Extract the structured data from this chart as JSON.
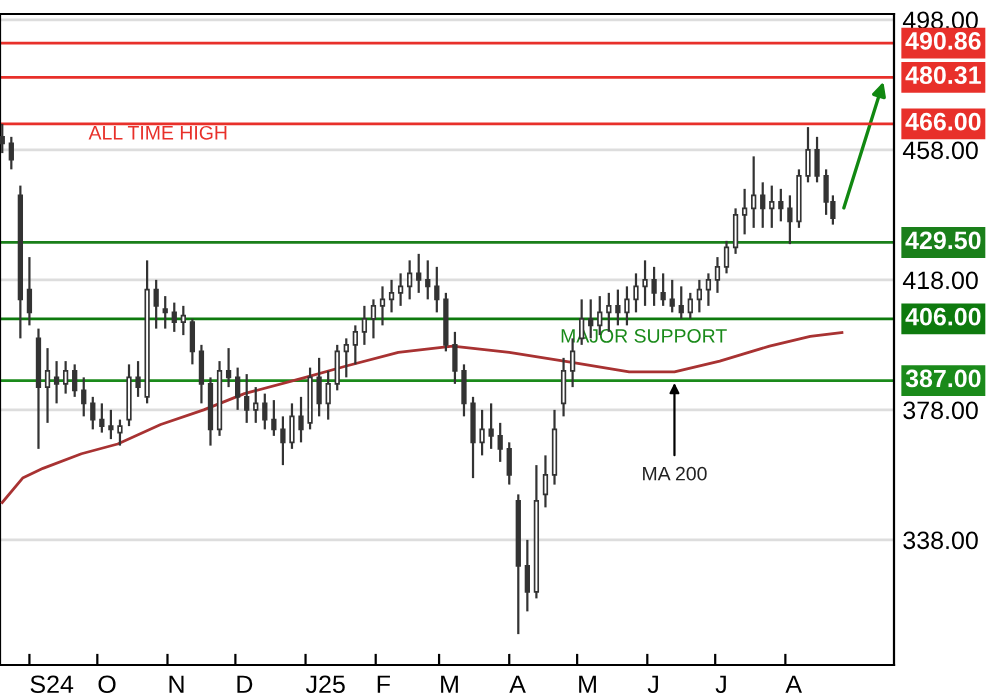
{
  "chart_data": {
    "type": "candlestick",
    "x": [
      "2024-08-20",
      "2024-08-24",
      "2024-08-28",
      "2024-09-01",
      "2024-09-05",
      "2024-09-09",
      "2024-09-13",
      "2024-09-17",
      "2024-09-21",
      "2024-09-25",
      "2024-09-29",
      "2024-10-03",
      "2024-10-07",
      "2024-10-11",
      "2024-10-15",
      "2024-10-19",
      "2024-10-23",
      "2024-10-27",
      "2024-10-31",
      "2024-11-04",
      "2024-11-08",
      "2024-11-12",
      "2024-11-16",
      "2024-11-20",
      "2024-11-24",
      "2024-11-28",
      "2024-12-02",
      "2024-12-06",
      "2024-12-10",
      "2024-12-14",
      "2024-12-18",
      "2024-12-22",
      "2024-12-26",
      "2024-12-30",
      "2025-01-03",
      "2025-01-07",
      "2025-01-11",
      "2025-01-15",
      "2025-01-19",
      "2025-01-23",
      "2025-01-27",
      "2025-01-31",
      "2025-02-04",
      "2025-02-08",
      "2025-02-12",
      "2025-02-16",
      "2025-02-20",
      "2025-02-24",
      "2025-02-28",
      "2025-03-04",
      "2025-03-08",
      "2025-03-12",
      "2025-03-16",
      "2025-03-20",
      "2025-03-24",
      "2025-03-28",
      "2025-04-01",
      "2025-04-05",
      "2025-04-09",
      "2025-04-13",
      "2025-04-17",
      "2025-04-21",
      "2025-04-25",
      "2025-04-29",
      "2025-05-03",
      "2025-05-07",
      "2025-05-11",
      "2025-05-15",
      "2025-05-19",
      "2025-05-23",
      "2025-05-27",
      "2025-05-31",
      "2025-06-04",
      "2025-06-08",
      "2025-06-12",
      "2025-06-16",
      "2025-06-20",
      "2025-06-24",
      "2025-06-28",
      "2025-07-02",
      "2025-07-06",
      "2025-07-10",
      "2025-07-14",
      "2025-07-18",
      "2025-07-22",
      "2025-07-26",
      "2025-07-30",
      "2025-08-03",
      "2025-08-07",
      "2025-08-11",
      "2025-08-15",
      "2025-08-19",
      "2025-08-22"
    ],
    "ohlc": [
      [
        462,
        466,
        457,
        460
      ],
      [
        460,
        462,
        452,
        455
      ],
      [
        444,
        447,
        400,
        412
      ],
      [
        415,
        425,
        404,
        408
      ],
      [
        400,
        403,
        366,
        385
      ],
      [
        385,
        397,
        374,
        390
      ],
      [
        388,
        393,
        380,
        386
      ],
      [
        386,
        393,
        383,
        390
      ],
      [
        390,
        392,
        382,
        384
      ],
      [
        384,
        388,
        376,
        380
      ],
      [
        380,
        382,
        372,
        375
      ],
      [
        375,
        380,
        371,
        373
      ],
      [
        373,
        378,
        369,
        372
      ],
      [
        371,
        375,
        367,
        373
      ],
      [
        375,
        392,
        373,
        388
      ],
      [
        388,
        393,
        382,
        385
      ],
      [
        382,
        424,
        380,
        415
      ],
      [
        415,
        418,
        403,
        410
      ],
      [
        409,
        413,
        403,
        408
      ],
      [
        408,
        411,
        402,
        405
      ],
      [
        405,
        410,
        401,
        407
      ],
      [
        405,
        406,
        392,
        396
      ],
      [
        396,
        398,
        380,
        386
      ],
      [
        386,
        388,
        367,
        372
      ],
      [
        372,
        393,
        370,
        390
      ],
      [
        390,
        397,
        385,
        388
      ],
      [
        388,
        391,
        378,
        382
      ],
      [
        382,
        389,
        374,
        378
      ],
      [
        378,
        385,
        374,
        380
      ],
      [
        380,
        383,
        372,
        375
      ],
      [
        375,
        381,
        370,
        372
      ],
      [
        372,
        376,
        361,
        368
      ],
      [
        368,
        380,
        366,
        376
      ],
      [
        376,
        382,
        368,
        372
      ],
      [
        374,
        391,
        372,
        388
      ],
      [
        388,
        394,
        376,
        380
      ],
      [
        380,
        390,
        375,
        386
      ],
      [
        386,
        398,
        384,
        396
      ],
      [
        396,
        400,
        388,
        398
      ],
      [
        398,
        404,
        392,
        402
      ],
      [
        402,
        410,
        398,
        406
      ],
      [
        406,
        412,
        400,
        410
      ],
      [
        410,
        416,
        404,
        412
      ],
      [
        412,
        418,
        408,
        414
      ],
      [
        414,
        420,
        410,
        416
      ],
      [
        416,
        424,
        412,
        420
      ],
      [
        420,
        426,
        414,
        418
      ],
      [
        418,
        424,
        412,
        416
      ],
      [
        416,
        422,
        408,
        412
      ],
      [
        412,
        414,
        396,
        398
      ],
      [
        398,
        402,
        386,
        390
      ],
      [
        390,
        392,
        376,
        380
      ],
      [
        380,
        382,
        357,
        368
      ],
      [
        368,
        378,
        364,
        372
      ],
      [
        372,
        380,
        366,
        370
      ],
      [
        370,
        374,
        362,
        366
      ],
      [
        366,
        368,
        355,
        358
      ],
      [
        350,
        352,
        309,
        330
      ],
      [
        330,
        338,
        316,
        322
      ],
      [
        322,
        361,
        320,
        350
      ],
      [
        352,
        364,
        348,
        358
      ],
      [
        358,
        378,
        355,
        372
      ],
      [
        380,
        394,
        376,
        390
      ],
      [
        390,
        400,
        385,
        396
      ],
      [
        400,
        412,
        398,
        406
      ],
      [
        406,
        412,
        400,
        404
      ],
      [
        404,
        413,
        401,
        408
      ],
      [
        408,
        414,
        402,
        410
      ],
      [
        410,
        415,
        404,
        408
      ],
      [
        408,
        416,
        404,
        412
      ],
      [
        412,
        420,
        408,
        416
      ],
      [
        416,
        424,
        410,
        418
      ],
      [
        418,
        422,
        410,
        414
      ],
      [
        414,
        420,
        410,
        412
      ],
      [
        412,
        418,
        408,
        410
      ],
      [
        410,
        416,
        406,
        408
      ],
      [
        408,
        414,
        406,
        412
      ],
      [
        412,
        418,
        408,
        415
      ],
      [
        415,
        420,
        410,
        418
      ],
      [
        418,
        425,
        414,
        422
      ],
      [
        422,
        430,
        420,
        428
      ],
      [
        428,
        440,
        426,
        438
      ],
      [
        438,
        446,
        432,
        440
      ],
      [
        440,
        456,
        434,
        444
      ],
      [
        444,
        448,
        434,
        440
      ],
      [
        440,
        447,
        434,
        442
      ],
      [
        442,
        446,
        436,
        440
      ],
      [
        440,
        444,
        429,
        436
      ],
      [
        436,
        452,
        434,
        450
      ],
      [
        450,
        465,
        448,
        458
      ],
      [
        458,
        462,
        448,
        450
      ],
      [
        450,
        452,
        438,
        442
      ],
      [
        442,
        444,
        435,
        437
      ]
    ],
    "color": "#333333",
    "series": [
      {
        "type": "line",
        "color": "#a83232",
        "x": [
          "2024-08-20",
          "2024-08-29",
          "2024-09-07",
          "2024-09-24",
          "2024-10-10",
          "2024-10-29",
          "2024-11-17",
          "2024-12-05",
          "2025-01-01",
          "2025-01-19",
          "2025-02-11",
          "2025-03-07",
          "2025-04-01",
          "2025-04-28",
          "2025-05-24",
          "2025-06-13",
          "2025-07-03",
          "2025-07-25",
          "2025-08-12",
          "2025-08-26"
        ],
        "values": [
          349.5,
          357,
          360,
          364.5,
          367.5,
          373.5,
          378,
          383,
          388,
          391.5,
          395.7,
          397.6,
          395.7,
          392.7,
          389.7,
          389.7,
          393,
          397.6,
          400.6,
          401.8
        ]
      }
    ],
    "ref_lines": [
      {
        "axis": "y",
        "value": 490.86,
        "label": "490.86",
        "color": "#e8302a"
      },
      {
        "axis": "y",
        "value": 480.31,
        "label": "480.31",
        "color": "#e8302a"
      },
      {
        "axis": "y",
        "value": 466,
        "label": "466.00",
        "color": "#e8302a"
      },
      {
        "axis": "y",
        "value": 429.5,
        "label": "429.50",
        "color": "#1a7f1a"
      },
      {
        "axis": "y",
        "value": 406,
        "label": "406.00",
        "color": "#0e7a0e"
      },
      {
        "axis": "y",
        "value": 387,
        "label": "387.00",
        "color": "#1a8a1a"
      }
    ],
    "annotations": [
      "ALL TIME HIGH",
      "MAJOR SUPPORT",
      {
        "text": "MA 200",
        "x": "2025-06-13",
        "y": 388
      }
    ],
    "xlim": [
      "2024-08-19",
      "2025-09-18"
    ],
    "xticks": [
      {
        "value": "2024-09-01",
        "label": "S24"
      },
      {
        "value": "2024-10-01",
        "label": "O"
      },
      {
        "value": "2024-11-01",
        "label": "N"
      },
      {
        "value": "2024-12-01",
        "label": "D"
      },
      {
        "value": "2025-01-01",
        "label": "J25"
      },
      {
        "value": "2025-02-01",
        "label": "F"
      },
      {
        "value": "2025-03-01",
        "label": "M"
      },
      {
        "value": "2025-04-01",
        "label": "A"
      },
      {
        "value": "2025-05-01",
        "label": "M"
      },
      {
        "value": "2025-06-01",
        "label": "J"
      },
      {
        "value": "2025-07-01",
        "label": "J"
      },
      {
        "value": "2025-08-01",
        "label": "A"
      }
    ],
    "ylim": [
      299.5,
      499.8
    ],
    "yticks": [
      {
        "value": 338,
        "label": "338.00"
      },
      {
        "value": 378,
        "label": "378.00"
      },
      {
        "value": 418,
        "label": "418.00"
      },
      {
        "value": 458,
        "label": "458.00"
      },
      {
        "value": 498,
        "label": "498.00"
      }
    ],
    "grid": "y",
    "legend": false
  }
}
